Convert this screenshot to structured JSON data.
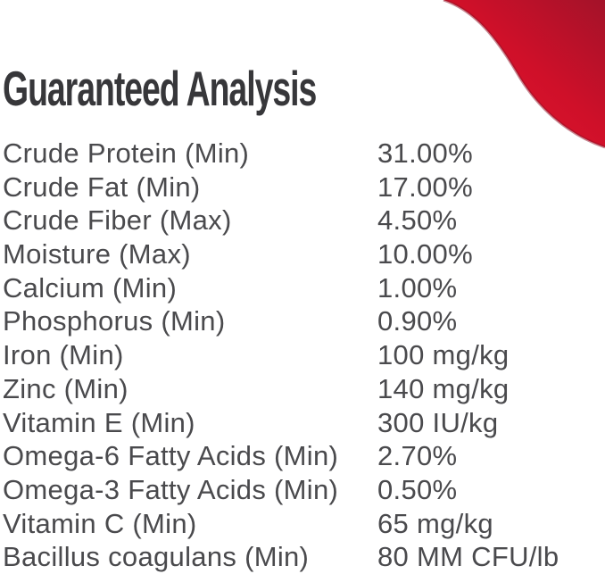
{
  "title": "Guaranteed Analysis",
  "decoration": {
    "name": "red-corner-swoosh",
    "color_bright": "#e81730",
    "color_mid": "#cf1029",
    "color_dark": "#a31229",
    "edge_shadow": "#8f1126"
  },
  "text_colors": {
    "title": "#37373a",
    "body": "#4a4a4d"
  },
  "analysis": {
    "rows": [
      {
        "label": "Crude Protein (Min)",
        "value": "31.00%"
      },
      {
        "label": "Crude Fat (Min)",
        "value": "17.00%"
      },
      {
        "label": "Crude Fiber (Max)",
        "value": "4.50%"
      },
      {
        "label": "Moisture (Max)",
        "value": "10.00%"
      },
      {
        "label": "Calcium (Min)",
        "value": "1.00%"
      },
      {
        "label": "Phosphorus (Min)",
        "value": "0.90%"
      },
      {
        "label": "Iron (Min)",
        "value": "100 mg/kg"
      },
      {
        "label": "Zinc (Min)",
        "value": "140 mg/kg"
      },
      {
        "label": "Vitamin E (Min)",
        "value": "300 IU/kg"
      },
      {
        "label": "Omega-6 Fatty Acids (Min)",
        "value": "2.70%"
      },
      {
        "label": "Omega-3 Fatty Acids (Min)",
        "value": "0.50%"
      },
      {
        "label": "Vitamin C (Min)",
        "value": "65 mg/kg"
      },
      {
        "label": "Bacillus coagulans (Min)",
        "value": "80 MM CFU/lb"
      }
    ]
  }
}
